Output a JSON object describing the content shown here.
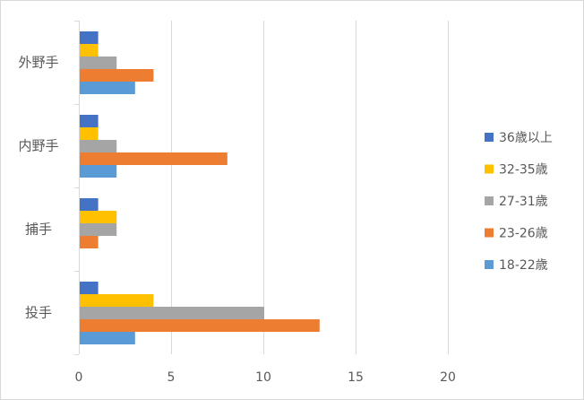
{
  "chart_data": {
    "type": "bar",
    "orientation": "horizontal",
    "title": "",
    "xlabel": "",
    "ylabel": "",
    "xlim": [
      0,
      25
    ],
    "x_ticks": [
      0,
      5,
      10,
      15,
      20
    ],
    "grid": true,
    "legend_position": "right",
    "categories": [
      "外野手",
      "内野手",
      "捕手",
      "投手"
    ],
    "series": [
      {
        "name": "36歳以上",
        "color": "#4472c4",
        "values": [
          1,
          1,
          1,
          1
        ]
      },
      {
        "name": "32-35歳",
        "color": "#ffc000",
        "values": [
          1,
          1,
          2,
          4
        ]
      },
      {
        "name": "27-31歳",
        "color": "#a5a5a5",
        "values": [
          2,
          2,
          2,
          10
        ]
      },
      {
        "name": "23-26歳",
        "color": "#ed7d31",
        "values": [
          4,
          8,
          1,
          13
        ]
      },
      {
        "name": "18-22歳",
        "color": "#5b9bd5",
        "values": [
          3,
          2,
          0,
          3
        ]
      }
    ]
  }
}
